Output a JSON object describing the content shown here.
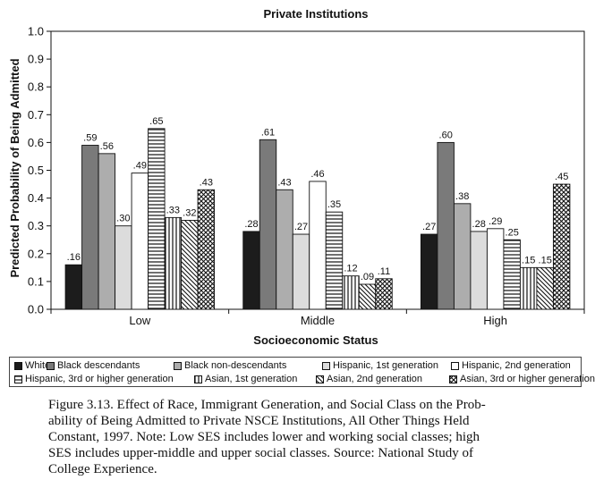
{
  "chart_data": {
    "type": "bar",
    "title": "Private Institutions",
    "xlabel": "Socioeconomic Status",
    "ylabel": "Predicted Probability of Being Admitted",
    "ylim": [
      0,
      1.0
    ],
    "yticks": [
      "0.0",
      "0.1",
      "0.2",
      "0.3",
      "0.4",
      "0.5",
      "0.6",
      "0.7",
      "0.8",
      "0.9",
      "1.0"
    ],
    "grid": false,
    "legend_position": "bottom",
    "categories": [
      "Low",
      "Middle",
      "High"
    ],
    "series": [
      {
        "name": "White",
        "values": [
          0.16,
          0.28,
          0.27
        ],
        "labels": [
          ".16",
          ".28",
          ".27"
        ],
        "fill": "#1c1c1c",
        "pattern": "solid"
      },
      {
        "name": "Black descendants",
        "values": [
          0.59,
          0.61,
          0.6
        ],
        "labels": [
          ".59",
          ".61",
          ".60"
        ],
        "fill": "#7a7a7a",
        "pattern": "solid"
      },
      {
        "name": "Black non-descendants",
        "values": [
          0.56,
          0.43,
          0.38
        ],
        "labels": [
          ".56",
          ".43",
          ".38"
        ],
        "fill": "#adadad",
        "pattern": "solid"
      },
      {
        "name": "Hispanic, 1st generation",
        "values": [
          0.3,
          0.27,
          0.28
        ],
        "labels": [
          ".30",
          ".27",
          ".28"
        ],
        "fill": "#dcdcdc",
        "pattern": "solid"
      },
      {
        "name": "Hispanic, 2nd generation",
        "values": [
          0.49,
          0.46,
          0.29
        ],
        "labels": [
          ".49",
          ".46",
          ".29"
        ],
        "fill": "#ffffff",
        "pattern": "solid"
      },
      {
        "name": "Hispanic, 3rd or higher generation",
        "values": [
          0.65,
          0.35,
          0.25
        ],
        "labels": [
          ".65",
          ".35",
          ".25"
        ],
        "fill": "#ffffff",
        "pattern": "hlines"
      },
      {
        "name": "Asian, 1st generation",
        "values": [
          0.33,
          0.12,
          0.15
        ],
        "labels": [
          ".33",
          ".12",
          ".15"
        ],
        "fill": "#ffffff",
        "pattern": "vlines"
      },
      {
        "name": "Asian, 2nd generation",
        "values": [
          0.32,
          0.09,
          0.15
        ],
        "labels": [
          ".32",
          ".09",
          ".15"
        ],
        "fill": "#ffffff",
        "pattern": "diag"
      },
      {
        "name": "Asian, 3rd or higher generation",
        "values": [
          0.43,
          0.11,
          0.45
        ],
        "labels": [
          ".43",
          ".11",
          ".45"
        ],
        "fill": "#ffffff",
        "pattern": "cross"
      }
    ]
  },
  "caption": "Figure 3.13. Effect of Race, Immigrant Generation, and Social Class on the Probability of Being Admitted to Private NSCE Institutions, All Other Things Held Constant, 1997. Note: Low SES includes lower and working social classes; high SES includes upper-middle and upper social classes. Source: National Study of College Experience.",
  "caption_lines": [
    "Figure 3.13. Effect of Race, Immigrant Generation, and Social Class on the Prob-",
    "ability of Being Admitted to Private NSCE Institutions, All Other Things Held",
    "Constant, 1997. Note: Low SES includes lower and working social classes; high",
    "SES includes upper-middle and upper social classes. Source: National Study of",
    "College Experience."
  ]
}
